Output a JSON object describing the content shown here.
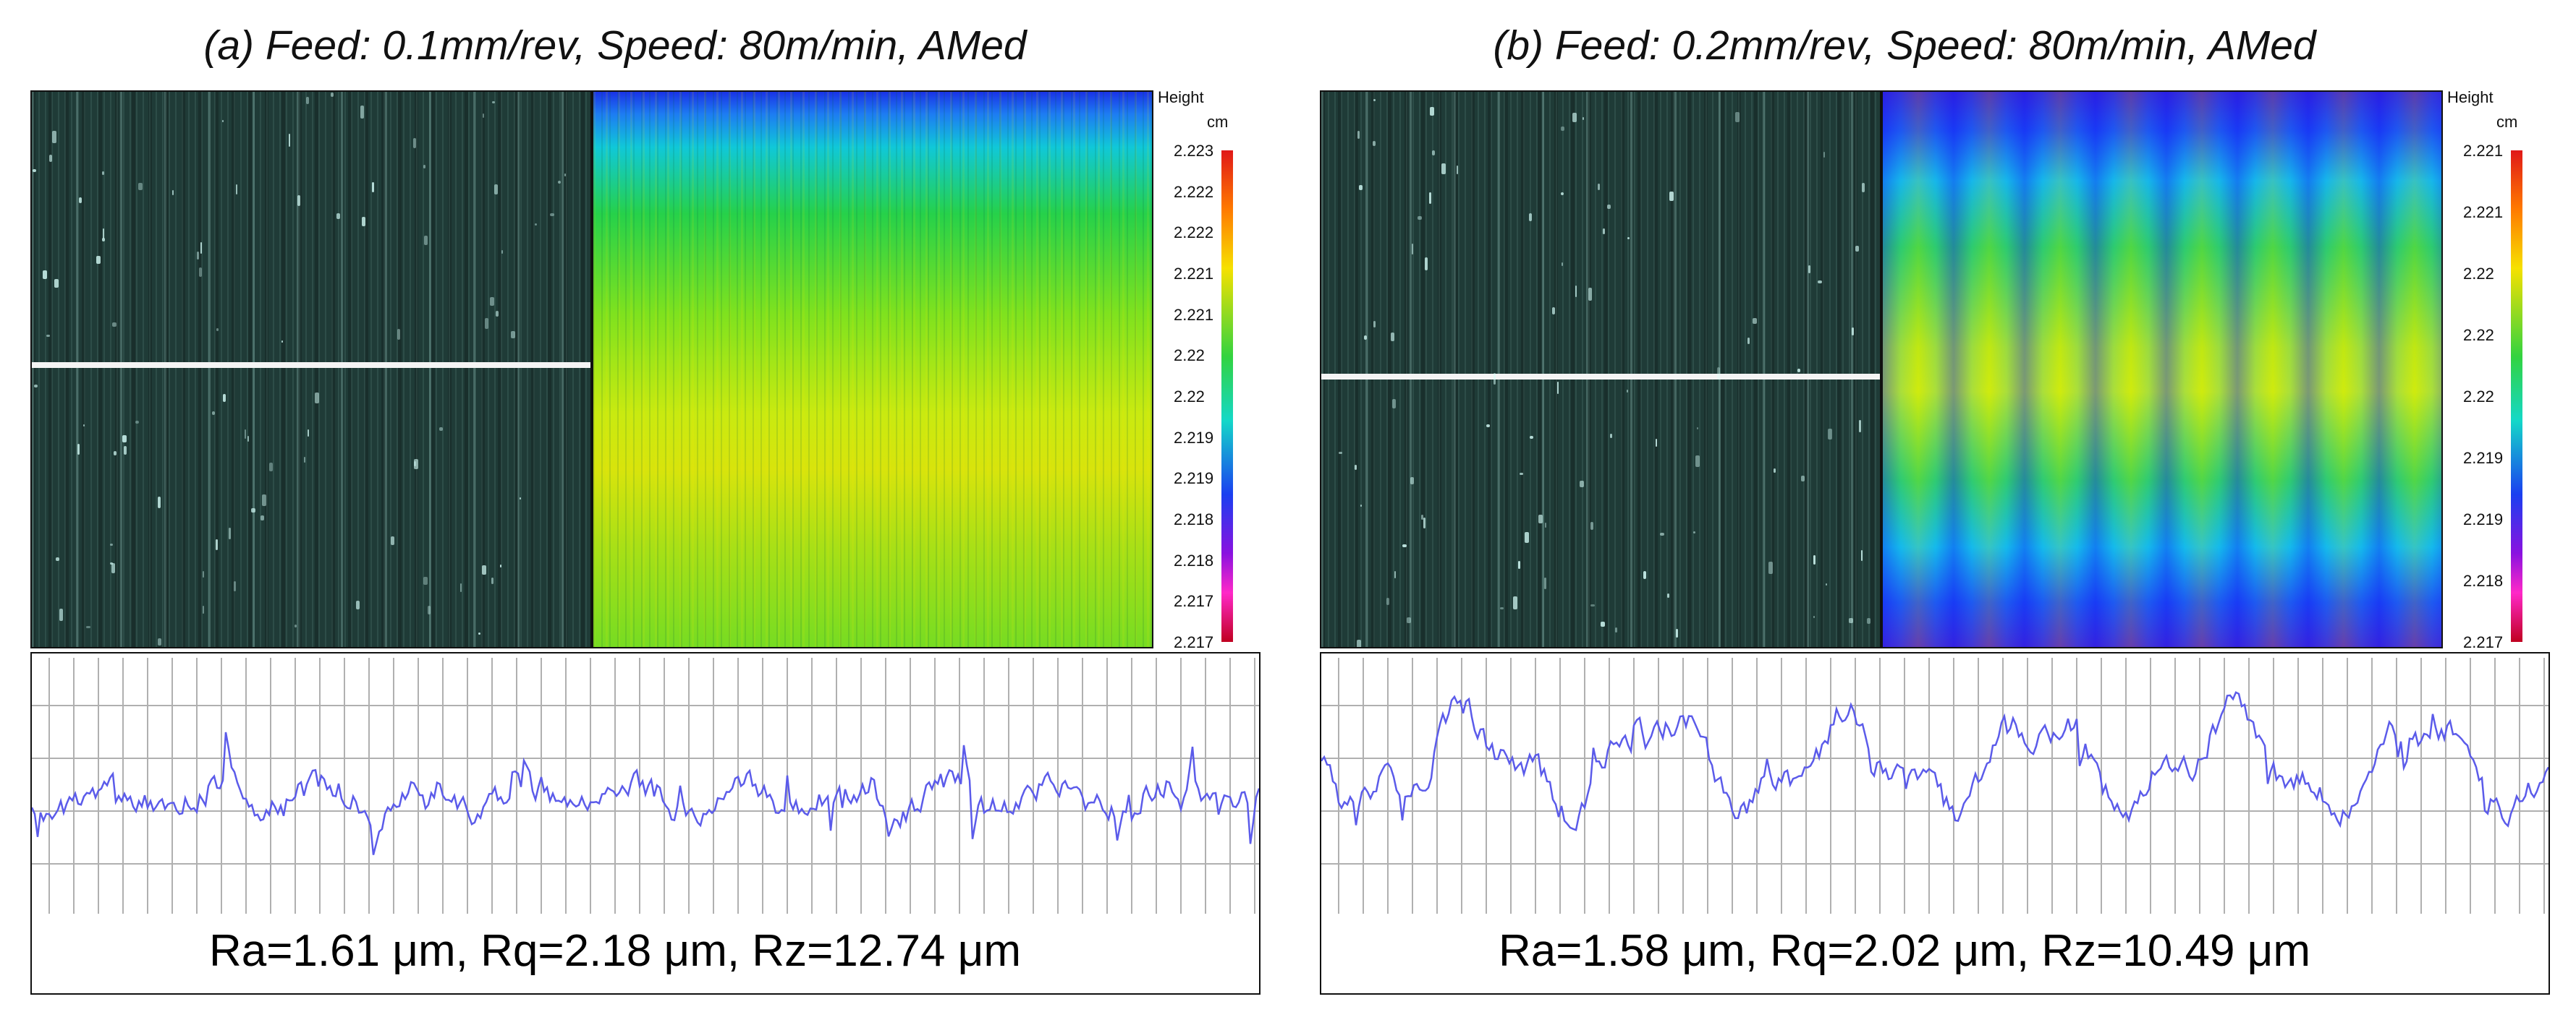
{
  "panels": {
    "a": {
      "title": "(a) Feed: 0.1mm/rev, Speed: 80m/min, AMed",
      "legend_title": "Height",
      "legend_unit": "cm",
      "legend_ticks": [
        "2.223",
        "2.222",
        "2.222",
        "2.221",
        "2.221",
        "2.22",
        "2.22",
        "2.219",
        "2.219",
        "2.218",
        "2.218",
        "2.217",
        "2.217"
      ],
      "metrics": "Ra=1.61 μm, Rq=2.18 μm, Rz=12.74 μm",
      "scan_line_level": 0.485,
      "profile_seed": 7,
      "profile_regime": "fine"
    },
    "b": {
      "title": "(b) Feed: 0.2mm/rev, Speed: 80m/min, AMed",
      "legend_title": "Height",
      "legend_unit": "cm",
      "legend_ticks": [
        "2.221",
        "2.221",
        "2.22",
        "2.22",
        "2.22",
        "2.219",
        "2.219",
        "2.218",
        "2.217"
      ],
      "metrics": "Ra=1.58 μm, Rq=2.02 μm, Rz=10.49 μm",
      "scan_line_level": 0.505,
      "profile_seed": 13,
      "profile_regime": "coarse"
    }
  },
  "colors": {
    "profile_line": "#5b5bea",
    "grid_line": "#b0b0b0",
    "scan_line": "#f4f4f4"
  }
}
